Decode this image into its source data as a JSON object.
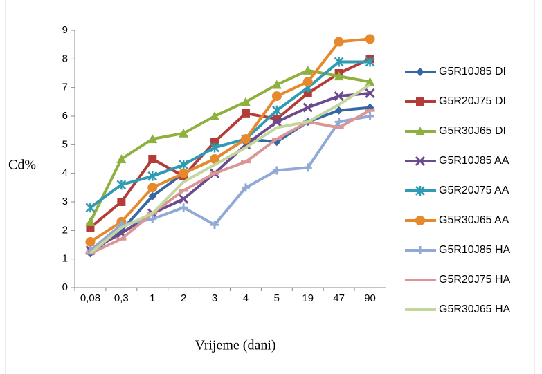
{
  "chart_data": {
    "type": "line",
    "x_label": "Vrijeme (dani)",
    "y_label": "Cd%",
    "categories": [
      "0,08",
      "0,3",
      "1",
      "2",
      "3",
      "4",
      "5",
      "19",
      "47",
      "90"
    ],
    "ylim": [
      0,
      9
    ],
    "yticks": [
      0,
      1,
      2,
      3,
      4,
      5,
      6,
      7,
      8,
      9
    ],
    "grid": false,
    "legend": "right",
    "series": [
      {
        "name": "G5R10J85  DI",
        "color": "#3566a6",
        "marker": "diamond",
        "values": [
          1.2,
          2.0,
          3.2,
          4.0,
          4.5,
          5.2,
          5.1,
          5.8,
          6.2,
          6.3
        ]
      },
      {
        "name": "G5R20J75 DI",
        "color": "#b33c38",
        "marker": "square",
        "values": [
          2.1,
          3.0,
          4.5,
          3.9,
          5.1,
          6.1,
          5.9,
          6.8,
          7.5,
          8.0
        ]
      },
      {
        "name": "G5R30J65 DI",
        "color": "#8eb03e",
        "marker": "triangle",
        "values": [
          2.3,
          4.5,
          5.2,
          5.4,
          6.0,
          6.5,
          7.1,
          7.6,
          7.4,
          7.2
        ]
      },
      {
        "name": "G5R10J85 AA",
        "color": "#6b4a8e",
        "marker": "x",
        "values": [
          1.3,
          1.9,
          2.6,
          3.1,
          4.0,
          5.0,
          5.8,
          6.3,
          6.7,
          6.8
        ]
      },
      {
        "name": "G5R20J75 AA",
        "color": "#2e9bb3",
        "marker": "star",
        "values": [
          2.8,
          3.6,
          3.9,
          4.3,
          4.9,
          5.2,
          6.2,
          7.0,
          7.9,
          7.9
        ]
      },
      {
        "name": "G5R30J65 AA",
        "color": "#e6892d",
        "marker": "circle",
        "values": [
          1.6,
          2.3,
          3.5,
          4.0,
          4.5,
          5.2,
          6.7,
          7.2,
          8.6,
          8.7
        ]
      },
      {
        "name": "G5R10J85 HA",
        "color": "#91a9d6",
        "marker": "plus",
        "values": [
          1.3,
          2.2,
          2.4,
          2.8,
          2.2,
          3.5,
          4.1,
          4.2,
          5.8,
          6.0
        ]
      },
      {
        "name": "G5R20J75 HA",
        "color": "#d99694",
        "marker": "dash",
        "values": [
          1.2,
          1.7,
          2.6,
          3.4,
          4.0,
          4.4,
          5.2,
          5.8,
          5.6,
          6.2
        ]
      },
      {
        "name": "G5R30J65 HA",
        "color": "#c3d69b",
        "marker": "none",
        "values": [
          1.2,
          2.1,
          2.6,
          3.7,
          4.3,
          4.9,
          5.6,
          5.8,
          6.4,
          7.1
        ]
      }
    ]
  }
}
